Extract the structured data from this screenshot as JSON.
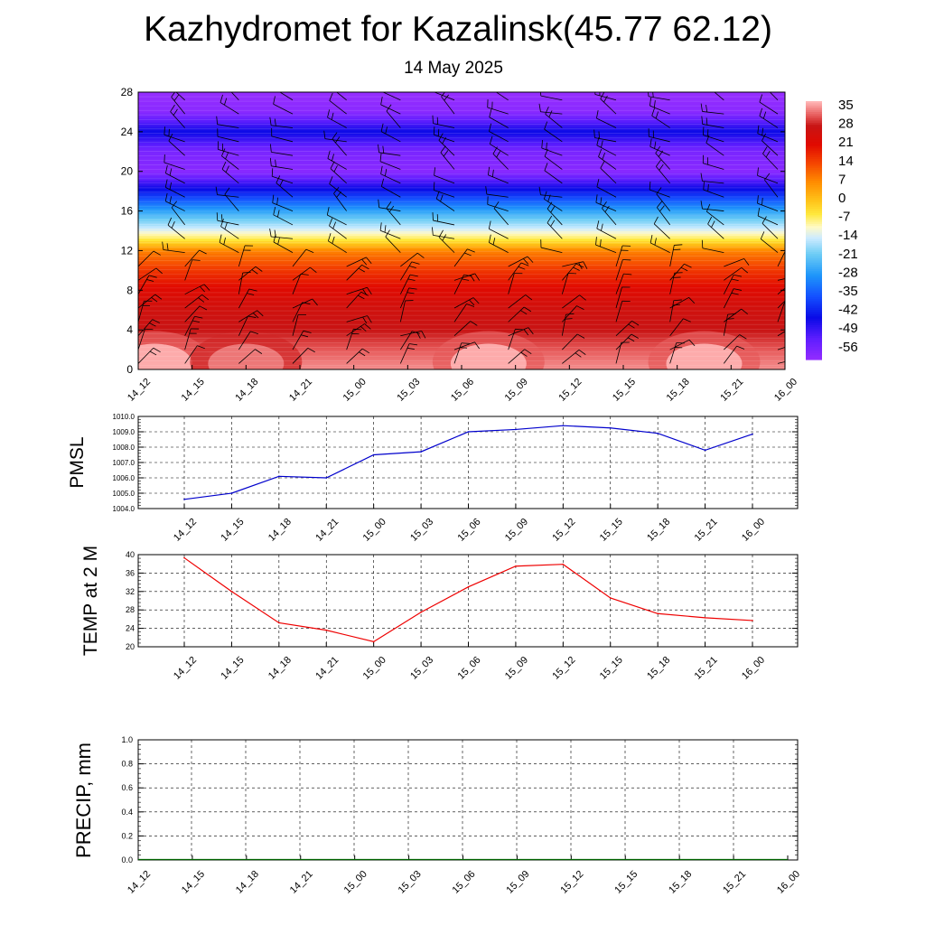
{
  "title": "Kazhydromet for Kazalinsk(45.77 62.12)",
  "subtitle": "14 May 2025",
  "chart_data": [
    {
      "type": "heatmap",
      "name": "temperature-wind-cross-section",
      "x": [
        "14_12",
        "14_15",
        "14_18",
        "14_21",
        "15_00",
        "15_03",
        "15_06",
        "15_09",
        "15_12",
        "15_15",
        "15_18",
        "15_21",
        "16_00"
      ],
      "y_ticks": [
        0,
        4,
        8,
        12,
        16,
        20,
        24,
        28
      ],
      "ylim": [
        0,
        28
      ],
      "colorbar_labels": [
        "35",
        "28",
        "21",
        "14",
        "7",
        "0",
        "-7",
        "-14",
        "-21",
        "-28",
        "-35",
        "-42",
        "-49",
        "-56"
      ],
      "colorbar_range": [
        -60,
        37
      ],
      "row_levels": [
        0,
        2,
        4,
        6,
        8,
        10,
        12,
        13,
        14,
        16,
        18,
        20,
        22,
        24,
        26,
        28
      ],
      "row_values": [
        35,
        32,
        28,
        26,
        22,
        16,
        8,
        -4,
        -12,
        -26,
        -42,
        -58,
        -56,
        -44,
        -58,
        -60
      ],
      "surface_warm_cores": [
        {
          "x_index": 0.3,
          "y": 1.5,
          "value": 37
        },
        {
          "x_index": 2.0,
          "y": 1.5,
          "value": 34
        },
        {
          "x_index": 6.5,
          "y": 1.5,
          "value": 37
        },
        {
          "x_index": 10.5,
          "y": 1.5,
          "value": 37
        }
      ],
      "wind_barbs": true
    },
    {
      "type": "line",
      "name": "pmsl",
      "ylabel": "PMSL",
      "categories": [
        "14_12",
        "14_15",
        "14_18",
        "14_21",
        "15_00",
        "15_03",
        "15_06",
        "15_09",
        "15_12",
        "15_15",
        "15_18",
        "15_21",
        "16_00"
      ],
      "y_tick_labels": [
        "1004.0",
        "1005.0",
        "1006.0",
        "1007.0",
        "1008.0",
        "1009.0",
        "1010.0"
      ],
      "ylim": [
        1004,
        1010
      ],
      "series": [
        {
          "color": "#0000cc",
          "values": [
            1004.6,
            1005.0,
            1006.1,
            1006.0,
            1007.5,
            1007.7,
            1009.0,
            1009.15,
            1009.4,
            1009.25,
            1008.9,
            1007.8,
            1008.85
          ]
        }
      ],
      "grid": true
    },
    {
      "type": "line",
      "name": "temp-2m",
      "ylabel": "TEMP at 2 M",
      "categories": [
        "14_12",
        "14_15",
        "14_18",
        "14_21",
        "15_00",
        "15_03",
        "15_06",
        "15_09",
        "15_12",
        "15_15",
        "15_18",
        "15_21",
        "16_00"
      ],
      "y_tick_labels": [
        "20",
        "24",
        "28",
        "32",
        "36",
        "40"
      ],
      "ylim": [
        20,
        40
      ],
      "series": [
        {
          "color": "#ee0000",
          "values": [
            39.3,
            32.0,
            25.2,
            23.6,
            21.1,
            27.5,
            33.0,
            37.5,
            37.9,
            30.6,
            27.2,
            26.3,
            25.7
          ]
        }
      ],
      "grid": true
    },
    {
      "type": "line",
      "name": "precip",
      "ylabel": "PRECIP, mm",
      "categories": [
        "14_12",
        "14_15",
        "14_18",
        "14_21",
        "15_00",
        "15_03",
        "15_06",
        "15_09",
        "15_12",
        "15_15",
        "15_18",
        "15_21",
        "16_00"
      ],
      "y_tick_labels": [
        "0.0",
        "0.2",
        "0.4",
        "0.6",
        "0.8",
        "1.0"
      ],
      "ylim": [
        0,
        1
      ],
      "series": [
        {
          "color": "#006400",
          "values": [
            0,
            0,
            0,
            0,
            0,
            0,
            0,
            0,
            0,
            0,
            0,
            0,
            0
          ]
        }
      ],
      "grid": true
    }
  ]
}
